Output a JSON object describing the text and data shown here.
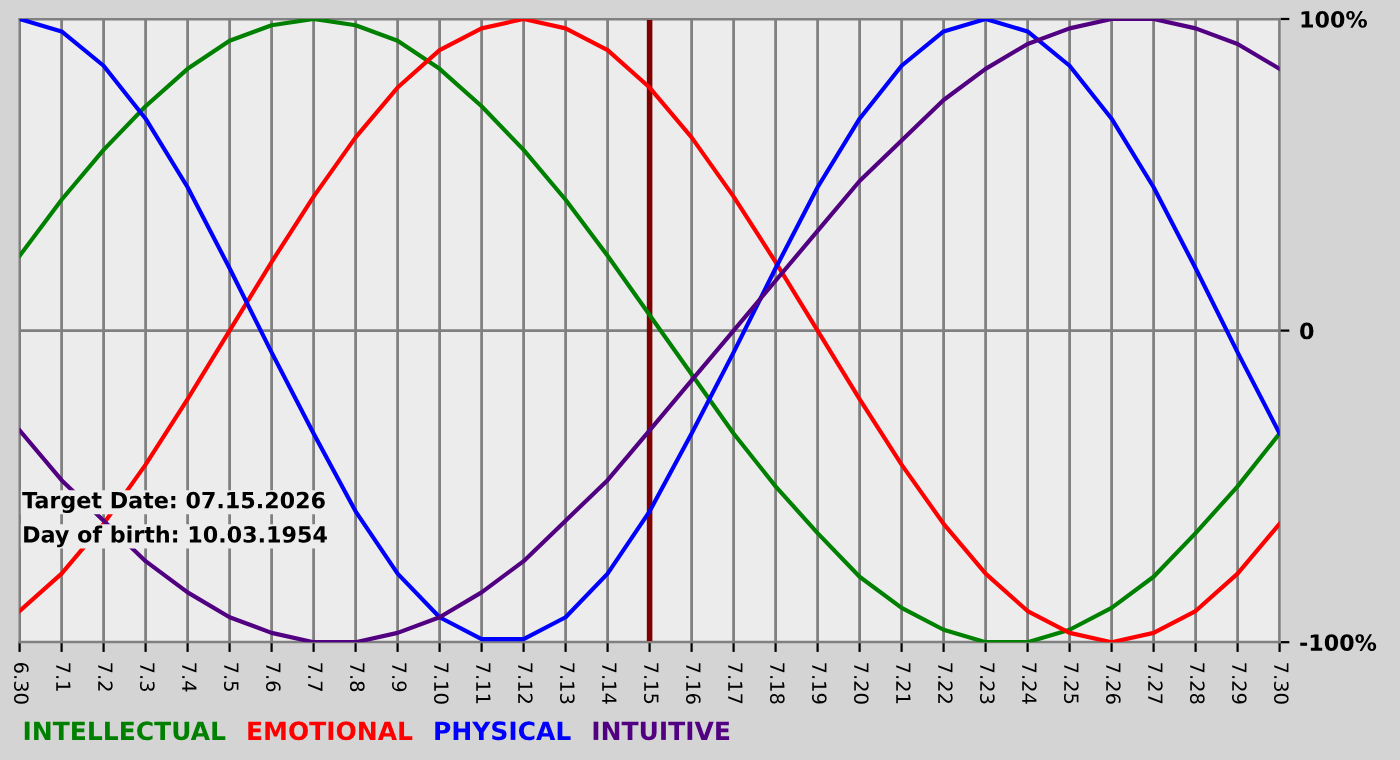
{
  "chart_data": {
    "type": "line",
    "categories": [
      "6.30",
      "7.1",
      "7.2",
      "7.3",
      "7.4",
      "7.5",
      "7.6",
      "7.7",
      "7.8",
      "7.9",
      "7.10",
      "7.11",
      "7.12",
      "7.13",
      "7.14",
      "7.15",
      "7.16",
      "7.17",
      "7.18",
      "7.19",
      "7.20",
      "7.21",
      "7.22",
      "7.23",
      "7.24",
      "7.25",
      "7.26",
      "7.27",
      "7.28",
      "7.29",
      "7.30"
    ],
    "series": [
      {
        "name": "INTELLECTUAL",
        "color": "#008000",
        "values": [
          24,
          42,
          58,
          72,
          84,
          93,
          98,
          100,
          98,
          93,
          84,
          72,
          58,
          42,
          24,
          5,
          -14,
          -33,
          -50,
          -65,
          -79,
          -89,
          -96,
          -100,
          -100,
          -96,
          -89,
          -79,
          -65,
          -50,
          -33
        ]
      },
      {
        "name": "EMOTIONAL",
        "color": "#ff0000",
        "values": [
          -90,
          -78,
          -62,
          -43,
          -22,
          0,
          22,
          43,
          62,
          78,
          90,
          97,
          100,
          97,
          90,
          78,
          62,
          43,
          22,
          0,
          -22,
          -43,
          -62,
          -78,
          -90,
          -97,
          -100,
          -97,
          -90,
          -78,
          -62
        ]
      },
      {
        "name": "PHYSICAL",
        "color": "#0000ff",
        "values": [
          100,
          96,
          85,
          68,
          46,
          20,
          -7,
          -33,
          -58,
          -78,
          -92,
          -99,
          -99,
          -92,
          -78,
          -58,
          -33,
          -7,
          20,
          46,
          68,
          85,
          96,
          100,
          96,
          85,
          68,
          46,
          20,
          -7,
          -33
        ]
      },
      {
        "name": "INTUITIVE",
        "color": "#500080",
        "values": [
          -32,
          -48,
          -61,
          -74,
          -84,
          -92,
          -97,
          -100,
          -100,
          -97,
          -92,
          -84,
          -74,
          -61,
          -48,
          -32,
          -16,
          0,
          16,
          32,
          48,
          61,
          74,
          84,
          92,
          97,
          100,
          100,
          97,
          92,
          84
        ]
      }
    ],
    "ylim": [
      -100,
      100
    ],
    "yticks": [
      {
        "value": -100,
        "label": "-100%"
      },
      0,
      {
        "value": 100,
        "label": "100%"
      }
    ],
    "ref_lines": [
      {
        "axis": "x",
        "value": "7.15",
        "color": "#800000"
      }
    ],
    "annotations": [
      "Target Date: 07.15.2026",
      "Day of birth: 10.03.1954"
    ],
    "grid": true,
    "legend": "bottom"
  }
}
